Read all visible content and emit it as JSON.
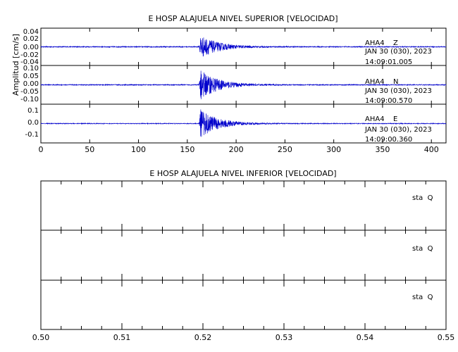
{
  "chart_data": [
    {
      "type": "line",
      "title": "E HOSP ALAJUELA NIVEL SUPERIOR [VELOCIDAD]",
      "ylabel": "Amplitud [cm/s]",
      "xlim": [
        0,
        415
      ],
      "x_ticks": [
        "0",
        "50",
        "100",
        "150",
        "200",
        "250",
        "300",
        "350",
        "400"
      ],
      "line_color": "#0000cc",
      "grid": false,
      "panels": [
        {
          "station": "AHA4",
          "component": "Z",
          "date": "JAN 30 (030), 2023",
          "time": "14:09:01.005",
          "y_ticks": [
            "0.04",
            "0.02",
            "0.00",
            "-0.02",
            "-0.04"
          ],
          "ylim": [
            -0.045,
            0.045
          ],
          "noise_amplitude": 0.0012,
          "event_onset": 162,
          "peak_amplitude": 0.03
        },
        {
          "station": "AHA4",
          "component": "N",
          "date": "JAN 30 (030), 2023",
          "time": "14:09:00.570",
          "y_ticks": [
            "0.10",
            "0.05",
            "0.00",
            "-0.05",
            "-0.10"
          ],
          "ylim": [
            -0.12,
            0.12
          ],
          "noise_amplitude": 0.003,
          "event_onset": 162,
          "peak_amplitude": 0.1
        },
        {
          "station": "AHA4",
          "component": "E",
          "date": "JAN 30 (030), 2023",
          "time": "14:09:00.360",
          "y_ticks": [
            "0.1",
            "0.0",
            "-0.1"
          ],
          "ylim": [
            -0.15,
            0.15
          ],
          "noise_amplitude": 0.003,
          "event_onset": 162,
          "peak_amplitude": 0.12
        }
      ]
    },
    {
      "type": "line",
      "title": "E HOSP ALAJUELA NIVEL INFERIOR [VELOCIDAD]",
      "xlim": [
        0.5,
        0.55
      ],
      "x_ticks": [
        "0.50",
        "0.51",
        "0.52",
        "0.53",
        "0.54",
        "0.55"
      ],
      "grid": false,
      "panels": [
        {
          "label": "sta  Q"
        },
        {
          "label": "sta  Q"
        },
        {
          "label": "sta  Q"
        }
      ]
    }
  ]
}
